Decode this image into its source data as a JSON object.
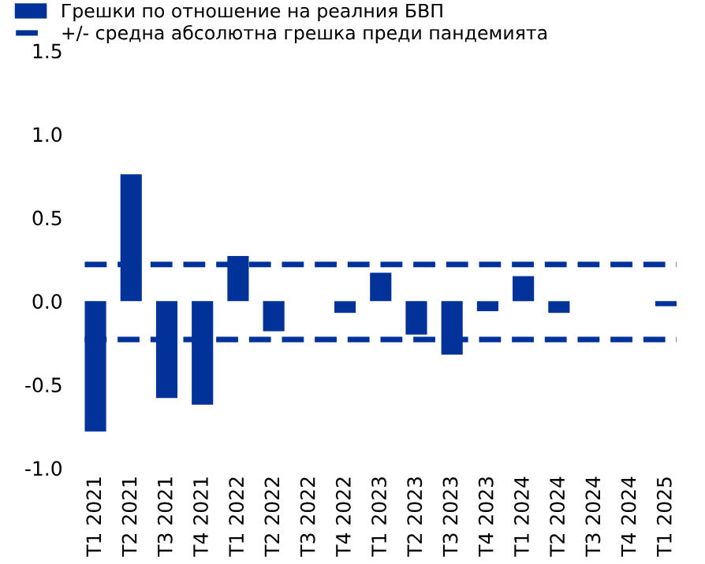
{
  "chart_data": {
    "type": "bar",
    "categories": [
      "T1 2021",
      "T2 2021",
      "T3 2021",
      "T4 2021",
      "T1 2022",
      "T2 2022",
      "T3 2022",
      "T4 2022",
      "T1 2023",
      "T2 2023",
      "T3 2023",
      "T4 2023",
      "T1 2024",
      "T2 2024",
      "T3 2024",
      "T4 2024",
      "T1 2025"
    ],
    "series": [
      {
        "name": "Грешки по отношение на реалния БВП",
        "color": "#003299",
        "values": [
          -0.78,
          0.76,
          -0.58,
          -0.62,
          0.27,
          -0.18,
          0.0,
          -0.07,
          0.17,
          -0.2,
          -0.32,
          -0.06,
          0.15,
          -0.07,
          0.0,
          0.0,
          -0.03
        ]
      }
    ],
    "ref_lines": [
      {
        "axis": "y",
        "value": 0.22,
        "label": "+/- средна абсолютна грешка преди пандемията",
        "color": "#003299",
        "line_style": "dashed"
      },
      {
        "axis": "y",
        "value": -0.23,
        "color": "#003299",
        "line_style": "dashed"
      }
    ],
    "ylim": [
      -1.0,
      1.5
    ],
    "yticks": [
      {
        "value": -1,
        "label": "-1.0"
      },
      {
        "value": -0.5,
        "label": "-0.5"
      },
      {
        "value": 0,
        "label": "0.0"
      },
      {
        "value": 0.5,
        "label": "0.5"
      },
      {
        "value": 1,
        "label": "1.0"
      },
      {
        "value": 1.5,
        "label": "1.5"
      }
    ],
    "legend": "top left",
    "grid": false
  }
}
